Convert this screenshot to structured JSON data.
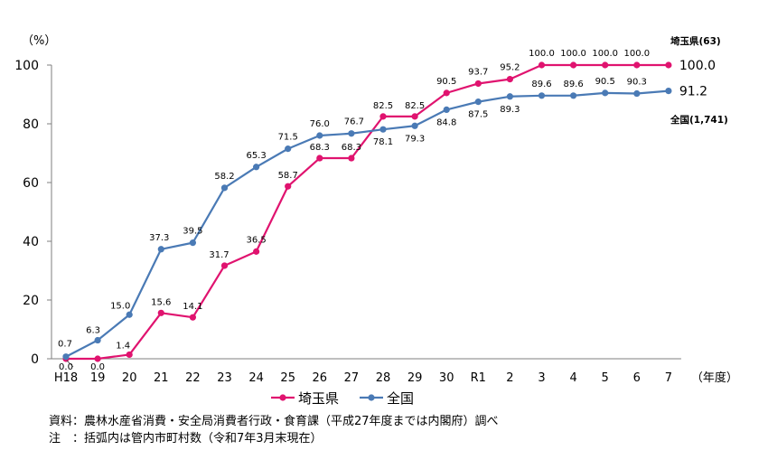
{
  "chart_data": {
    "type": "line",
    "y_unit": "（%）",
    "x_unit": "（年度）",
    "x": [
      "H18",
      "19",
      "20",
      "21",
      "22",
      "23",
      "24",
      "25",
      "26",
      "27",
      "28",
      "29",
      "30",
      "R1",
      "2",
      "3",
      "4",
      "5",
      "6",
      "7"
    ],
    "ylim": [
      0,
      100
    ],
    "yticks": [
      "0",
      "20",
      "40",
      "60",
      "80",
      "100"
    ],
    "grid": false,
    "legend_position": "bottom",
    "series": [
      {
        "name": "埼玉県",
        "color": "#e0136f",
        "values": [
          0.0,
          0.0,
          1.4,
          15.6,
          14.1,
          31.7,
          36.5,
          58.7,
          68.3,
          68.3,
          82.5,
          82.5,
          90.5,
          93.7,
          95.2,
          100.0,
          100.0,
          100.0,
          100.0,
          100.0
        ],
        "labels": [
          "0.0",
          "0.0",
          "1.4",
          "15.6",
          "14.1",
          "31.7",
          "36.5",
          "58.7",
          "68.3",
          "68.3",
          "82.5",
          "82.5",
          "90.5",
          "93.7",
          "95.2",
          "100.0",
          "100.0",
          "100.0",
          "100.0",
          ""
        ],
        "end_value": "100.0",
        "end_label": "埼玉県(63)"
      },
      {
        "name": "全国",
        "color": "#4a7ab5",
        "values": [
          0.7,
          6.3,
          15.0,
          37.3,
          39.5,
          58.2,
          65.3,
          71.5,
          76.0,
          76.7,
          78.1,
          79.3,
          84.8,
          87.5,
          89.3,
          89.6,
          89.6,
          90.5,
          90.3,
          91.2
        ],
        "labels": [
          "0.7",
          "6.3",
          "15.0",
          "37.3",
          "39.5",
          "58.2",
          "65.3",
          "71.5",
          "76.0",
          "76.7",
          "78.1",
          "79.3",
          "84.8",
          "87.5",
          "89.3",
          "89.6",
          "89.6",
          "90.5",
          "90.3",
          ""
        ],
        "end_value": "91.2",
        "end_label": "全国(1,741)"
      }
    ]
  },
  "notes": [
    "資料：農林水産省消費・安全局消費者行政・食育課（平成27年度までは内閣府）調べ",
    "注　：括弧内は管内市町村数（令和7年3月末現在）"
  ]
}
